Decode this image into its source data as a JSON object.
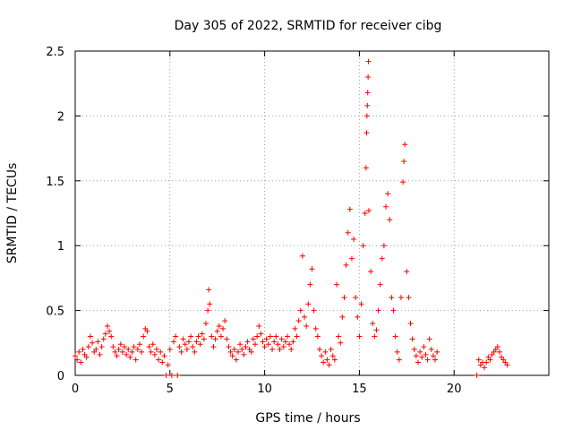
{
  "chart_data": {
    "type": "scatter",
    "title": "Day 305 of 2022, SRMTID for receiver cibg",
    "xlabel": "GPS time / hours",
    "ylabel": "SRMTID / TECUs",
    "xlim": [
      0,
      25
    ],
    "ylim": [
      0,
      2.5
    ],
    "grid": true,
    "x_ticks": [
      0,
      5,
      10,
      15,
      20
    ],
    "x_tick_labels": [
      "0",
      "5",
      "10",
      "15",
      "20"
    ],
    "y_ticks": [
      0,
      0.5,
      1,
      1.5,
      2,
      2.5
    ],
    "y_tick_labels": [
      "0",
      "0.5",
      "1",
      "1.5",
      "2",
      "2.5"
    ],
    "marker": "+",
    "color": "#ff0000",
    "series": [
      {
        "name": "SRMTID",
        "points": [
          [
            0.0,
            0.15
          ],
          [
            0.1,
            0.12
          ],
          [
            0.2,
            0.18
          ],
          [
            0.3,
            0.1
          ],
          [
            0.4,
            0.2
          ],
          [
            0.5,
            0.16
          ],
          [
            0.6,
            0.14
          ],
          [
            0.7,
            0.22
          ],
          [
            0.8,
            0.3
          ],
          [
            0.9,
            0.25
          ],
          [
            1.0,
            0.18
          ],
          [
            1.1,
            0.2
          ],
          [
            1.2,
            0.26
          ],
          [
            1.3,
            0.16
          ],
          [
            1.4,
            0.22
          ],
          [
            1.5,
            0.28
          ],
          [
            1.6,
            0.32
          ],
          [
            1.7,
            0.38
          ],
          [
            1.8,
            0.34
          ],
          [
            1.9,
            0.3
          ],
          [
            2.0,
            0.22
          ],
          [
            2.1,
            0.18
          ],
          [
            2.2,
            0.15
          ],
          [
            2.3,
            0.2
          ],
          [
            2.4,
            0.24
          ],
          [
            2.5,
            0.18
          ],
          [
            2.6,
            0.22
          ],
          [
            2.7,
            0.16
          ],
          [
            2.8,
            0.2
          ],
          [
            2.9,
            0.14
          ],
          [
            3.0,
            0.18
          ],
          [
            3.1,
            0.22
          ],
          [
            3.2,
            0.12
          ],
          [
            3.3,
            0.2
          ],
          [
            3.4,
            0.24
          ],
          [
            3.5,
            0.18
          ],
          [
            3.6,
            0.3
          ],
          [
            3.7,
            0.36
          ],
          [
            3.8,
            0.34
          ],
          [
            3.9,
            0.22
          ],
          [
            4.0,
            0.18
          ],
          [
            4.1,
            0.24
          ],
          [
            4.2,
            0.16
          ],
          [
            4.3,
            0.2
          ],
          [
            4.4,
            0.12
          ],
          [
            4.5,
            0.18
          ],
          [
            4.6,
            0.1
          ],
          [
            4.7,
            0.15
          ],
          [
            4.8,
            0.0
          ],
          [
            4.9,
            0.08
          ],
          [
            5.0,
            0.2
          ],
          [
            5.1,
            0.0
          ],
          [
            5.2,
            0.26
          ],
          [
            5.3,
            0.3
          ],
          [
            5.4,
            0.0
          ],
          [
            5.5,
            0.22
          ],
          [
            5.6,
            0.18
          ],
          [
            5.7,
            0.28
          ],
          [
            5.8,
            0.24
          ],
          [
            5.9,
            0.2
          ],
          [
            6.0,
            0.26
          ],
          [
            6.1,
            0.3
          ],
          [
            6.2,
            0.22
          ],
          [
            6.3,
            0.18
          ],
          [
            6.4,
            0.26
          ],
          [
            6.5,
            0.3
          ],
          [
            6.6,
            0.24
          ],
          [
            6.7,
            0.32
          ],
          [
            6.8,
            0.28
          ],
          [
            6.9,
            0.4
          ],
          [
            7.0,
            0.5
          ],
          [
            7.05,
            0.66
          ],
          [
            7.1,
            0.55
          ],
          [
            7.2,
            0.3
          ],
          [
            7.3,
            0.22
          ],
          [
            7.4,
            0.28
          ],
          [
            7.5,
            0.34
          ],
          [
            7.6,
            0.38
          ],
          [
            7.7,
            0.3
          ],
          [
            7.8,
            0.36
          ],
          [
            7.9,
            0.42
          ],
          [
            8.0,
            0.28
          ],
          [
            8.1,
            0.22
          ],
          [
            8.2,
            0.18
          ],
          [
            8.3,
            0.15
          ],
          [
            8.4,
            0.2
          ],
          [
            8.5,
            0.12
          ],
          [
            8.6,
            0.18
          ],
          [
            8.7,
            0.24
          ],
          [
            8.8,
            0.2
          ],
          [
            8.9,
            0.16
          ],
          [
            9.0,
            0.22
          ],
          [
            9.1,
            0.26
          ],
          [
            9.2,
            0.2
          ],
          [
            9.3,
            0.18
          ],
          [
            9.4,
            0.28
          ],
          [
            9.5,
            0.24
          ],
          [
            9.6,
            0.3
          ],
          [
            9.7,
            0.38
          ],
          [
            9.8,
            0.32
          ],
          [
            9.9,
            0.26
          ],
          [
            10.0,
            0.22
          ],
          [
            10.1,
            0.28
          ],
          [
            10.2,
            0.24
          ],
          [
            10.3,
            0.3
          ],
          [
            10.4,
            0.2
          ],
          [
            10.5,
            0.26
          ],
          [
            10.6,
            0.3
          ],
          [
            10.7,
            0.24
          ],
          [
            10.8,
            0.2
          ],
          [
            10.9,
            0.28
          ],
          [
            11.0,
            0.22
          ],
          [
            11.1,
            0.26
          ],
          [
            11.2,
            0.3
          ],
          [
            11.3,
            0.24
          ],
          [
            11.4,
            0.2
          ],
          [
            11.5,
            0.26
          ],
          [
            11.6,
            0.36
          ],
          [
            11.7,
            0.3
          ],
          [
            11.8,
            0.42
          ],
          [
            11.9,
            0.5
          ],
          [
            12.0,
            0.92
          ],
          [
            12.1,
            0.45
          ],
          [
            12.2,
            0.38
          ],
          [
            12.3,
            0.55
          ],
          [
            12.4,
            0.7
          ],
          [
            12.5,
            0.82
          ],
          [
            12.6,
            0.5
          ],
          [
            12.7,
            0.36
          ],
          [
            12.8,
            0.3
          ],
          [
            12.9,
            0.2
          ],
          [
            13.0,
            0.15
          ],
          [
            13.1,
            0.1
          ],
          [
            13.2,
            0.18
          ],
          [
            13.3,
            0.12
          ],
          [
            13.4,
            0.08
          ],
          [
            13.5,
            0.2
          ],
          [
            13.6,
            0.15
          ],
          [
            13.7,
            0.12
          ],
          [
            13.8,
            0.7
          ],
          [
            13.9,
            0.3
          ],
          [
            14.0,
            0.25
          ],
          [
            14.1,
            0.45
          ],
          [
            14.2,
            0.6
          ],
          [
            14.3,
            0.85
          ],
          [
            14.4,
            1.1
          ],
          [
            14.5,
            1.28
          ],
          [
            14.6,
            0.9
          ],
          [
            14.7,
            1.05
          ],
          [
            14.8,
            0.6
          ],
          [
            14.9,
            0.45
          ],
          [
            15.0,
            0.3
          ],
          [
            15.1,
            0.55
          ],
          [
            15.2,
            1.0
          ],
          [
            15.3,
            1.25
          ],
          [
            15.35,
            1.6
          ],
          [
            15.38,
            1.87
          ],
          [
            15.4,
            2.0
          ],
          [
            15.42,
            2.08
          ],
          [
            15.44,
            2.18
          ],
          [
            15.46,
            2.3
          ],
          [
            15.48,
            2.42
          ],
          [
            15.5,
            1.27
          ],
          [
            15.6,
            0.8
          ],
          [
            15.7,
            0.4
          ],
          [
            15.8,
            0.3
          ],
          [
            15.9,
            0.35
          ],
          [
            16.0,
            0.5
          ],
          [
            16.1,
            0.7
          ],
          [
            16.2,
            0.9
          ],
          [
            16.3,
            1.0
          ],
          [
            16.4,
            1.3
          ],
          [
            16.5,
            1.4
          ],
          [
            16.6,
            1.2
          ],
          [
            16.7,
            0.6
          ],
          [
            16.8,
            0.5
          ],
          [
            16.9,
            0.3
          ],
          [
            17.0,
            0.18
          ],
          [
            17.1,
            0.12
          ],
          [
            17.2,
            0.6
          ],
          [
            17.3,
            1.49
          ],
          [
            17.35,
            1.65
          ],
          [
            17.4,
            1.78
          ],
          [
            17.5,
            0.8
          ],
          [
            17.6,
            0.6
          ],
          [
            17.7,
            0.4
          ],
          [
            17.8,
            0.28
          ],
          [
            17.9,
            0.2
          ],
          [
            18.0,
            0.15
          ],
          [
            18.1,
            0.1
          ],
          [
            18.2,
            0.18
          ],
          [
            18.3,
            0.14
          ],
          [
            18.4,
            0.22
          ],
          [
            18.5,
            0.16
          ],
          [
            18.6,
            0.12
          ],
          [
            18.7,
            0.28
          ],
          [
            18.8,
            0.2
          ],
          [
            18.9,
            0.15
          ],
          [
            19.0,
            0.12
          ],
          [
            19.1,
            0.18
          ],
          [
            21.2,
            0.0
          ],
          [
            21.3,
            0.12
          ],
          [
            21.4,
            0.08
          ],
          [
            21.5,
            0.1
          ],
          [
            21.6,
            0.06
          ],
          [
            21.7,
            0.1
          ],
          [
            21.8,
            0.14
          ],
          [
            21.9,
            0.12
          ],
          [
            22.0,
            0.16
          ],
          [
            22.1,
            0.18
          ],
          [
            22.2,
            0.2
          ],
          [
            22.3,
            0.22
          ],
          [
            22.4,
            0.18
          ],
          [
            22.5,
            0.14
          ],
          [
            22.6,
            0.12
          ],
          [
            22.7,
            0.1
          ],
          [
            22.8,
            0.08
          ]
        ]
      }
    ]
  }
}
